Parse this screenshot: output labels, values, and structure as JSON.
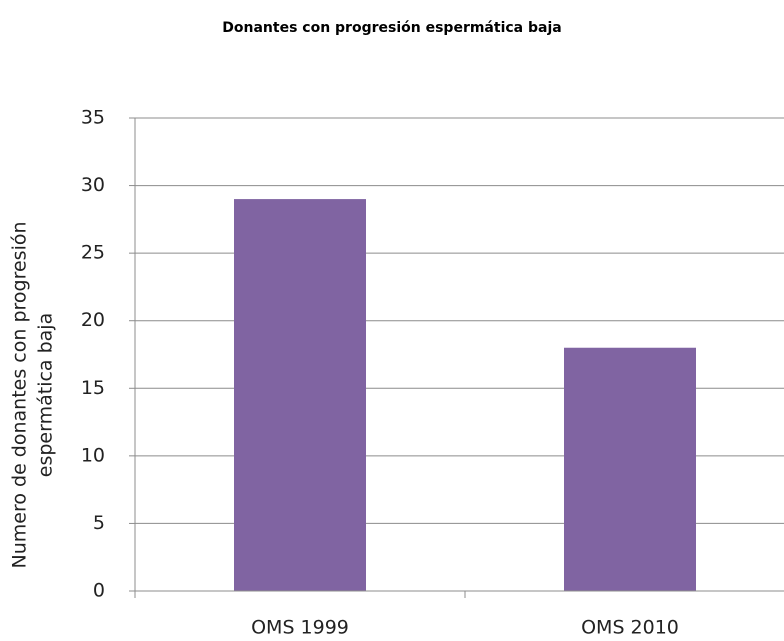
{
  "chart_data": {
    "type": "bar",
    "title": "Donantes con progresión espermática baja",
    "ylabel": [
      "Numero de donantes con progresión",
      "espermática  baja"
    ],
    "categories": [
      "OMS 1999",
      "OMS 2010"
    ],
    "values": [
      29,
      18
    ],
    "color": "#8064a2",
    "ylim": [
      0,
      35
    ],
    "yticks": [
      0,
      5,
      10,
      15,
      20,
      25,
      30,
      35
    ],
    "grid": true
  }
}
